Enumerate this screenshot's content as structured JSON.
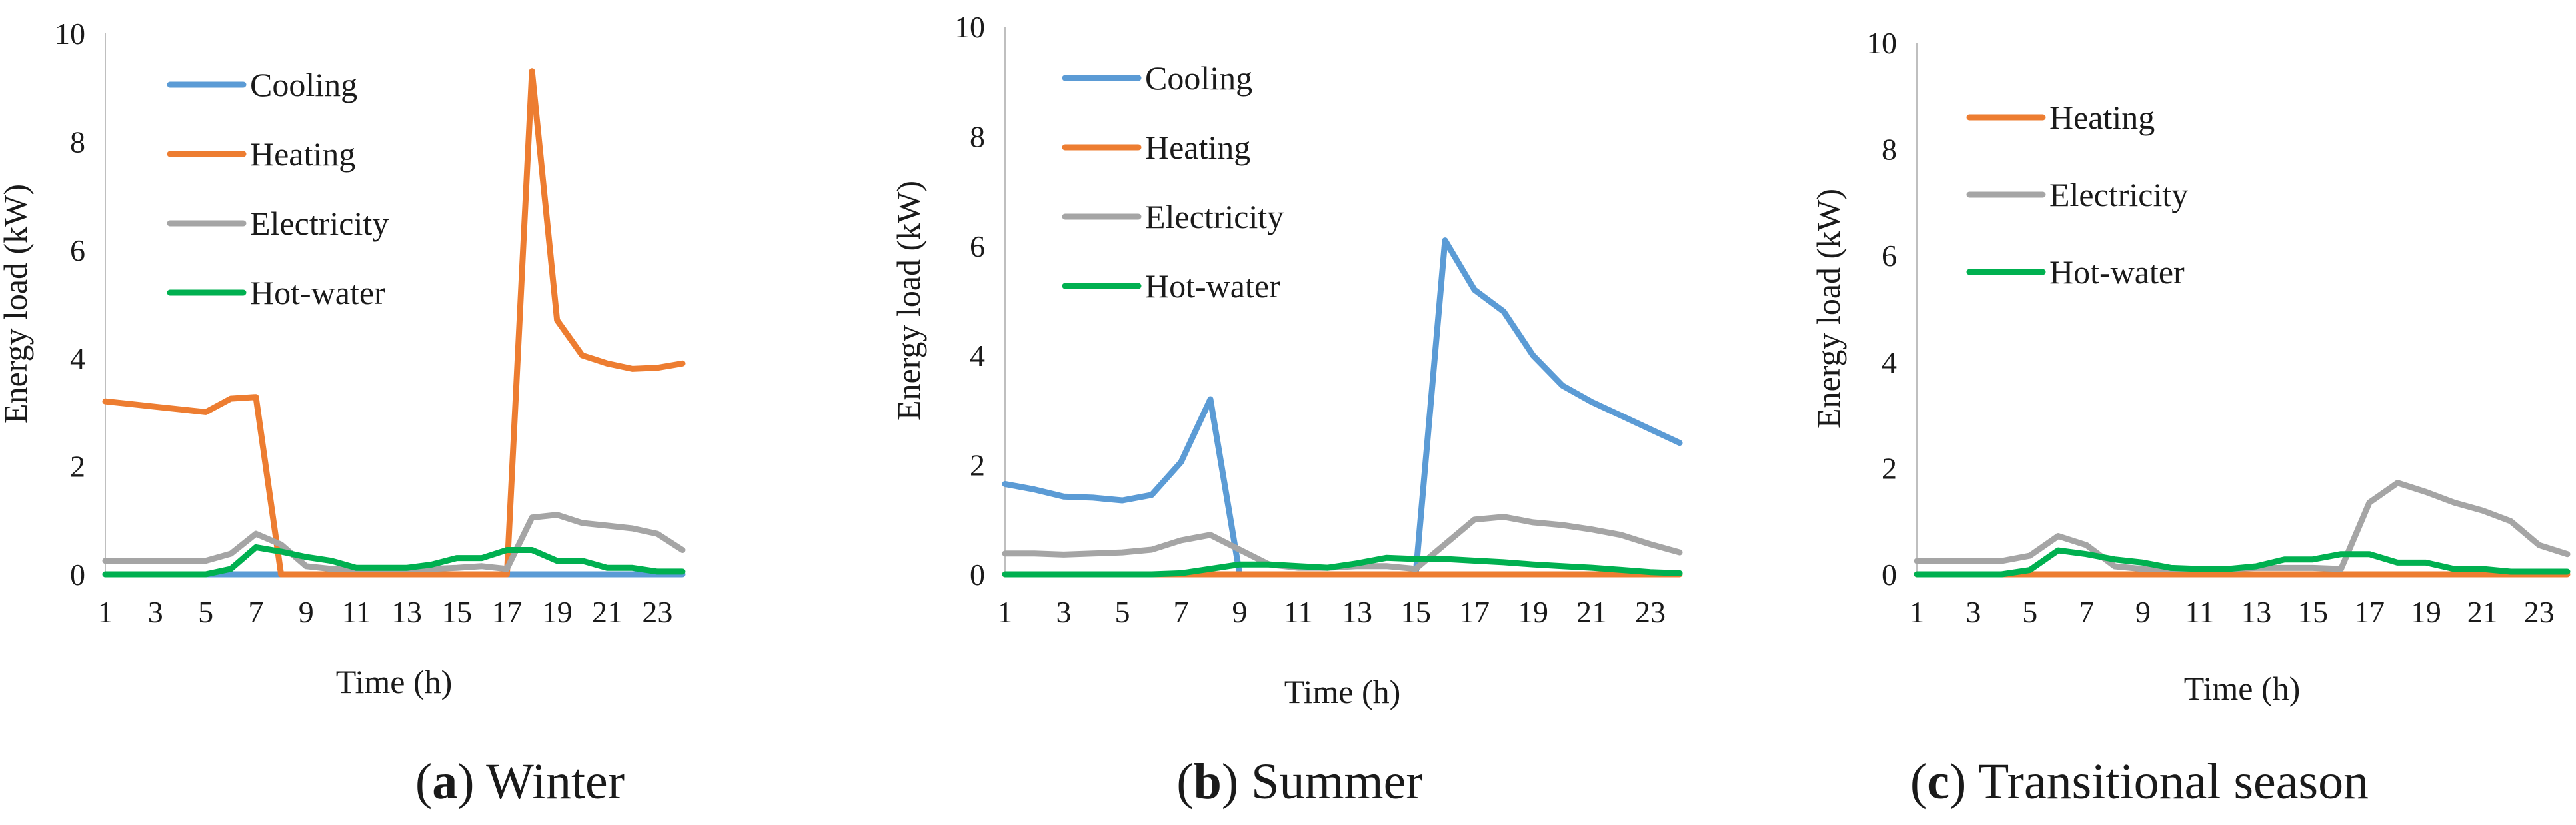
{
  "figure": {
    "captions": [
      {
        "label": "a",
        "text": "Winter"
      },
      {
        "label": "b",
        "text": "Summer"
      },
      {
        "label": "c",
        "text": "Transitional season"
      }
    ]
  },
  "colors": {
    "Cooling": "#5B9BD5",
    "Heating": "#ED7D31",
    "Electricity": "#A5A5A5",
    "Hot-water": "#00B050"
  },
  "chart_data": [
    {
      "type": "line",
      "title": "",
      "xlabel": "Time (h)",
      "ylabel": "Energy load (kW)",
      "ylim": [
        0,
        10
      ],
      "yticks": [
        0,
        2,
        4,
        6,
        8,
        10
      ],
      "xlim": [
        1,
        24
      ],
      "xticks": [
        1,
        3,
        5,
        7,
        9,
        11,
        13,
        15,
        17,
        19,
        21,
        23
      ],
      "x": [
        1,
        2,
        3,
        4,
        5,
        6,
        7,
        8,
        9,
        10,
        11,
        12,
        13,
        14,
        15,
        16,
        17,
        18,
        19,
        20,
        21,
        22,
        23,
        24
      ],
      "legend_position": "top-left",
      "series": [
        {
          "name": "Cooling",
          "values": [
            0,
            0,
            0,
            0,
            0,
            0,
            0,
            0,
            0,
            0,
            0,
            0,
            0,
            0,
            0,
            0,
            0,
            0,
            0,
            0,
            0,
            0,
            0,
            0
          ]
        },
        {
          "name": "Heating",
          "values": [
            3.2,
            3.15,
            3.1,
            3.05,
            3.0,
            3.25,
            3.28,
            0,
            0,
            0,
            0,
            0,
            0,
            0,
            0,
            0,
            0,
            9.3,
            4.7,
            4.05,
            3.9,
            3.8,
            3.82,
            3.9
          ]
        },
        {
          "name": "Electricity",
          "values": [
            0.25,
            0.25,
            0.25,
            0.25,
            0.25,
            0.38,
            0.75,
            0.55,
            0.15,
            0.1,
            0.1,
            0.1,
            0.1,
            0.1,
            0.12,
            0.15,
            0.1,
            1.05,
            1.1,
            0.95,
            0.9,
            0.85,
            0.75,
            0.45
          ]
        },
        {
          "name": "Hot-water",
          "values": [
            0,
            0,
            0,
            0,
            0,
            0.1,
            0.5,
            0.42,
            0.32,
            0.25,
            0.12,
            0.12,
            0.12,
            0.18,
            0.3,
            0.3,
            0.45,
            0.45,
            0.25,
            0.25,
            0.12,
            0.12,
            0.05,
            0.05
          ]
        }
      ]
    },
    {
      "type": "line",
      "title": "",
      "xlabel": "Time (h)",
      "ylabel": "Energy load (kW)",
      "ylim": [
        0,
        10
      ],
      "yticks": [
        0,
        2,
        4,
        6,
        8,
        10
      ],
      "xlim": [
        1,
        24
      ],
      "xticks": [
        1,
        3,
        5,
        7,
        9,
        11,
        13,
        15,
        17,
        19,
        21,
        23
      ],
      "x": [
        1,
        2,
        3,
        4,
        5,
        6,
        7,
        8,
        9,
        10,
        11,
        12,
        13,
        14,
        15,
        16,
        17,
        18,
        19,
        20,
        21,
        22,
        23,
        24
      ],
      "legend_position": "top-left",
      "series": [
        {
          "name": "Cooling",
          "values": [
            1.65,
            1.55,
            1.42,
            1.4,
            1.35,
            1.45,
            2.05,
            3.2,
            0,
            0,
            0,
            0,
            0,
            0,
            0,
            6.1,
            5.2,
            4.8,
            4.0,
            3.45,
            3.15,
            2.9,
            2.65,
            2.4
          ]
        },
        {
          "name": "Heating",
          "values": [
            0,
            0,
            0,
            0,
            0,
            0,
            0,
            0,
            0,
            0,
            0,
            0,
            0,
            0,
            0,
            0,
            0,
            0,
            0,
            0,
            0,
            0,
            0,
            0
          ]
        },
        {
          "name": "Electricity",
          "values": [
            0.38,
            0.38,
            0.36,
            0.38,
            0.4,
            0.45,
            0.62,
            0.72,
            0.45,
            0.18,
            0.12,
            0.12,
            0.15,
            0.15,
            0.1,
            0.55,
            1.0,
            1.05,
            0.95,
            0.9,
            0.82,
            0.72,
            0.55,
            0.4
          ]
        },
        {
          "name": "Hot-water",
          "values": [
            0,
            0,
            0,
            0,
            0,
            0,
            0.02,
            0.1,
            0.18,
            0.18,
            0.15,
            0.12,
            0.2,
            0.3,
            0.28,
            0.28,
            0.25,
            0.22,
            0.18,
            0.15,
            0.12,
            0.08,
            0.04,
            0.02
          ]
        }
      ]
    },
    {
      "type": "line",
      "title": "",
      "xlabel": "Time (h)",
      "ylabel": "Energy load (kW)",
      "ylim": [
        0,
        10
      ],
      "yticks": [
        0,
        2,
        4,
        6,
        8,
        10
      ],
      "xlim": [
        1,
        24
      ],
      "xticks": [
        1,
        3,
        5,
        7,
        9,
        11,
        13,
        15,
        17,
        19,
        21,
        23
      ],
      "x": [
        1,
        2,
        3,
        4,
        5,
        6,
        7,
        8,
        9,
        10,
        11,
        12,
        13,
        14,
        15,
        16,
        17,
        18,
        19,
        20,
        21,
        22,
        23,
        24
      ],
      "legend_position": "top-left",
      "series": [
        {
          "name": "Heating",
          "values": [
            0,
            0,
            0,
            0,
            0,
            0,
            0,
            0,
            0,
            0,
            0,
            0,
            0,
            0,
            0,
            0,
            0,
            0,
            0,
            0,
            0,
            0,
            0,
            0
          ]
        },
        {
          "name": "Electricity",
          "values": [
            0.25,
            0.25,
            0.25,
            0.25,
            0.35,
            0.72,
            0.55,
            0.15,
            0.1,
            0.1,
            0.1,
            0.1,
            0.12,
            0.12,
            0.12,
            0.1,
            1.35,
            1.72,
            1.55,
            1.35,
            1.2,
            1.0,
            0.55,
            0.38
          ]
        },
        {
          "name": "Hot-water",
          "values": [
            0,
            0,
            0,
            0,
            0.08,
            0.45,
            0.38,
            0.28,
            0.22,
            0.12,
            0.1,
            0.1,
            0.15,
            0.28,
            0.28,
            0.38,
            0.38,
            0.22,
            0.22,
            0.1,
            0.1,
            0.05,
            0.05,
            0.05
          ]
        }
      ]
    }
  ]
}
